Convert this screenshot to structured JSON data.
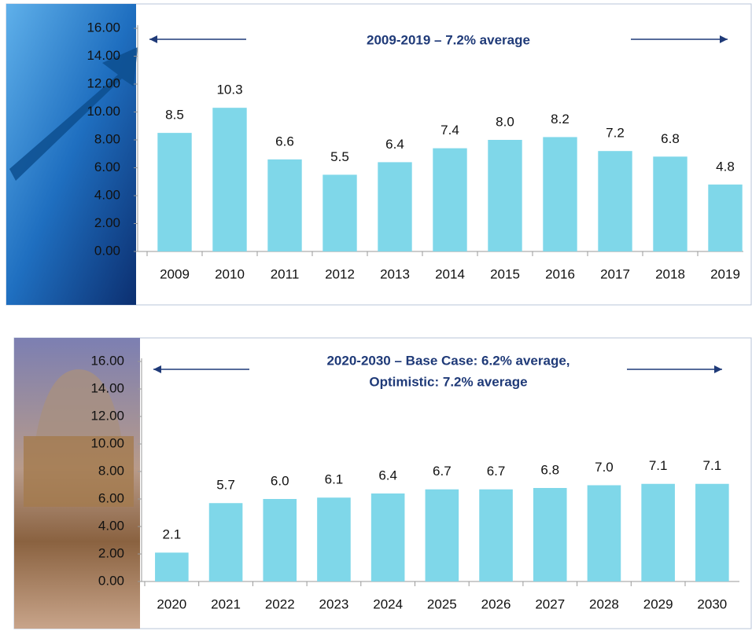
{
  "chart_data": [
    {
      "type": "bar",
      "title": [
        "2009-2019 – 7.2% average"
      ],
      "categories": [
        "2009",
        "2010",
        "2011",
        "2012",
        "2013",
        "2014",
        "2015",
        "2016",
        "2017",
        "2018",
        "2019"
      ],
      "values": [
        8.5,
        10.3,
        6.6,
        5.5,
        6.4,
        7.4,
        8.0,
        8.2,
        7.2,
        6.8,
        4.8
      ],
      "value_labels": [
        "8.5",
        "10.3",
        "6.6",
        "5.5",
        "6.4",
        "7.4",
        "8.0",
        "8.2",
        "7.2",
        "6.8",
        "4.8"
      ],
      "color": "#7fd7e9",
      "ylim": [
        0,
        16
      ],
      "yticks": [
        {
          "value": 0,
          "label": "0.00"
        },
        {
          "value": 2,
          "label": "2.00"
        },
        {
          "value": 4,
          "label": "4.00"
        },
        {
          "value": 6,
          "label": "6.00"
        },
        {
          "value": 8,
          "label": "8.00"
        },
        {
          "value": 10,
          "label": "10.00"
        },
        {
          "value": 12,
          "label": "12.00"
        },
        {
          "value": 14,
          "label": "14.00"
        },
        {
          "value": 16,
          "label": "16.00"
        }
      ]
    },
    {
      "type": "bar",
      "title": [
        "2020-2030 – Base Case: 6.2% average,",
        "Optimistic: 7.2% average"
      ],
      "categories": [
        "2020",
        "2021",
        "2022",
        "2023",
        "2024",
        "2025",
        "2026",
        "2027",
        "2028",
        "2029",
        "2030"
      ],
      "values": [
        2.1,
        5.7,
        6.0,
        6.1,
        6.4,
        6.7,
        6.7,
        6.8,
        7.0,
        7.1,
        7.1
      ],
      "value_labels": [
        "2.1",
        "5.7",
        "6.0",
        "6.1",
        "6.4",
        "6.7",
        "6.7",
        "6.8",
        "7.0",
        "7.1",
        "7.1"
      ],
      "color": "#7fd7e9",
      "ylim": [
        0,
        16
      ],
      "yticks": [
        {
          "value": 0,
          "label": "0.00"
        },
        {
          "value": 2,
          "label": "2.00"
        },
        {
          "value": 4,
          "label": "4.00"
        },
        {
          "value": 6,
          "label": "6.00"
        },
        {
          "value": 8,
          "label": "8.00"
        },
        {
          "value": 10,
          "label": "10.00"
        },
        {
          "value": 12,
          "label": "12.00"
        },
        {
          "value": 14,
          "label": "14.00"
        },
        {
          "value": 16,
          "label": "16.00"
        }
      ]
    }
  ]
}
